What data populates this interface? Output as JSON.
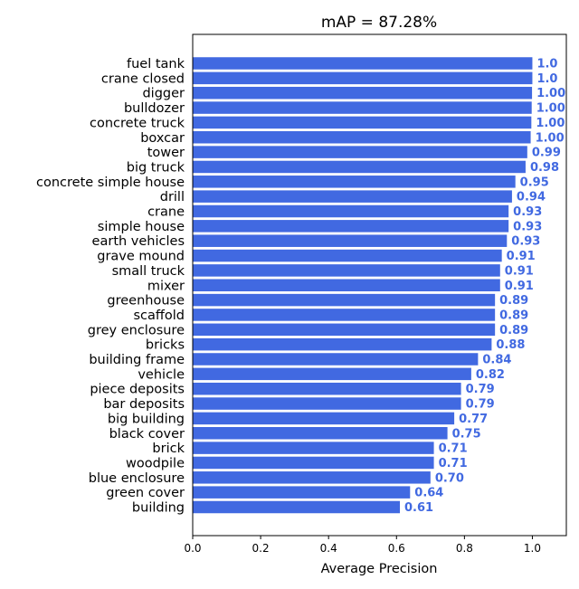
{
  "chart_data": {
    "type": "bar",
    "orientation": "horizontal",
    "title": "mAP = 87.28%",
    "xlabel": "Average Precision",
    "ylabel": "",
    "xlim": [
      0,
      1.1
    ],
    "xticks": [
      "0.0",
      "0.2",
      "0.4",
      "0.6",
      "0.8",
      "1.0"
    ],
    "grid": false,
    "bar_color": "#4169e1",
    "label_color": "#4169e1",
    "categories": [
      "fuel tank",
      "crane closed",
      "digger",
      "bulldozer",
      "concrete truck",
      "boxcar",
      "tower",
      "big truck",
      "concrete simple house",
      "drill",
      "crane",
      "simple house",
      "earth vehicles",
      "grave mound",
      "small truck",
      "mixer",
      "greenhouse",
      "scaffold",
      "grey enclosure",
      "bricks",
      "building frame",
      "vehicle",
      "piece deposits",
      "bar deposits",
      "big building",
      "black cover",
      "brick",
      "woodpile",
      "blue enclosure",
      "green cover",
      "building"
    ],
    "values": [
      1.0,
      1.0,
      0.999,
      0.998,
      0.997,
      0.995,
      0.985,
      0.98,
      0.95,
      0.94,
      0.93,
      0.93,
      0.925,
      0.91,
      0.905,
      0.905,
      0.89,
      0.89,
      0.89,
      0.88,
      0.84,
      0.82,
      0.79,
      0.79,
      0.77,
      0.75,
      0.71,
      0.71,
      0.7,
      0.64,
      0.61
    ],
    "value_labels": [
      "1.0",
      "1.0",
      "1.00",
      "1.00",
      "1.00",
      "1.00",
      "0.99",
      "0.98",
      "0.95",
      "0.94",
      "0.93",
      "0.93",
      "0.93",
      "0.91",
      "0.91",
      "0.91",
      "0.89",
      "0.89",
      "0.89",
      "0.88",
      "0.84",
      "0.82",
      "0.79",
      "0.79",
      "0.77",
      "0.75",
      "0.71",
      "0.71",
      "0.70",
      "0.64",
      "0.61"
    ]
  }
}
